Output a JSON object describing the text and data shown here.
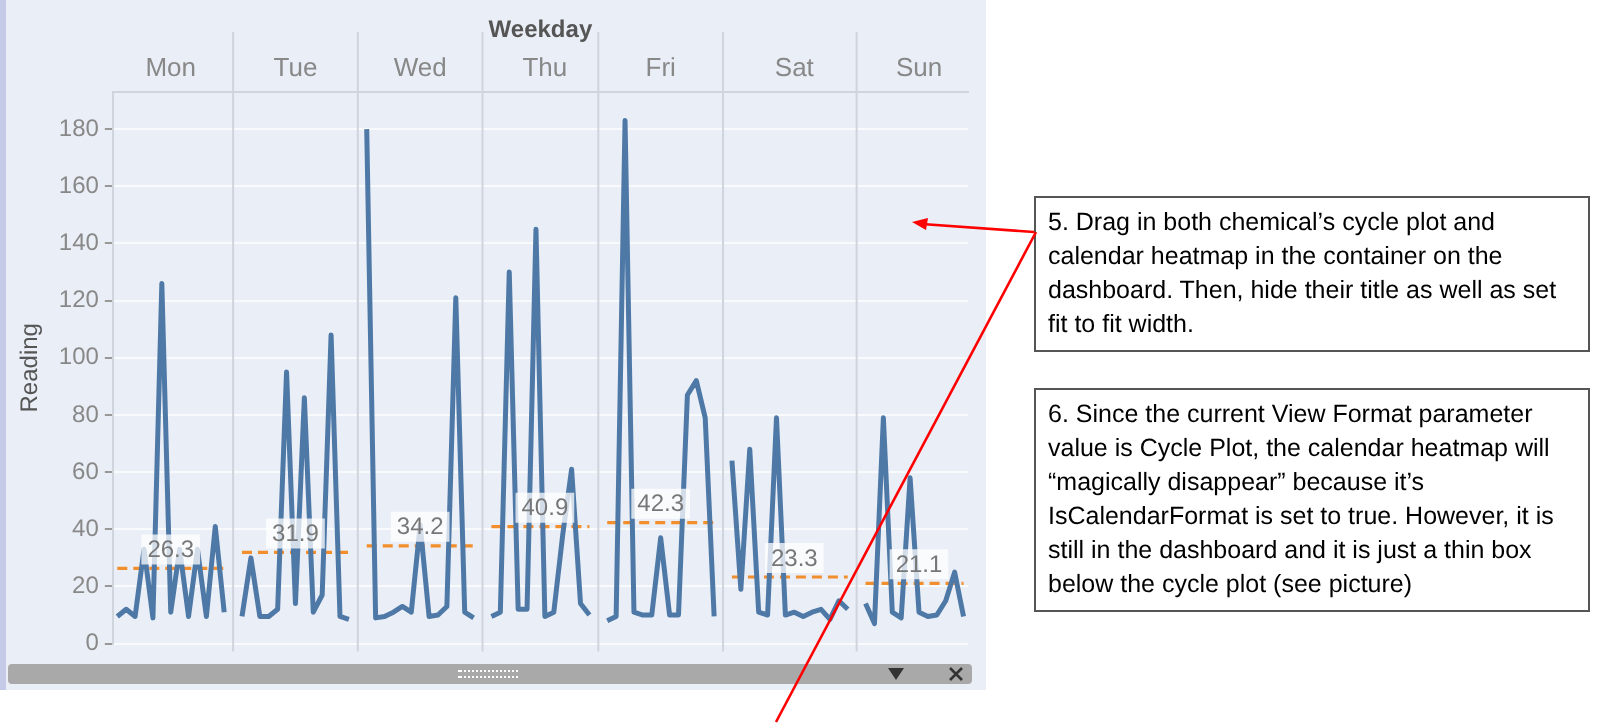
{
  "chart_data": [
    {
      "type": "line",
      "xlabel": "Weekday",
      "ylabel": "Reading",
      "categories": [
        null,
        null,
        null,
        null,
        null,
        null,
        "Mon",
        null,
        null,
        null,
        null,
        null,
        null,
        null,
        null,
        null,
        null,
        null,
        null,
        null,
        "Tue",
        null,
        null,
        null,
        null,
        null,
        null,
        null,
        null,
        null,
        null,
        null,
        null,
        null,
        "Wed",
        null,
        null,
        null,
        null,
        null,
        null,
        null,
        null,
        null,
        null,
        null,
        null,
        null,
        "Thu",
        null,
        null,
        null,
        null,
        null,
        null,
        null,
        null,
        null,
        null,
        null,
        null,
        "Fri",
        null,
        null,
        null,
        null,
        null,
        null,
        null,
        null,
        null,
        null,
        null,
        null,
        null,
        null,
        "Sat",
        null,
        null,
        null,
        null,
        null,
        null,
        null,
        null,
        null,
        null,
        null,
        null,
        null,
        "Sun",
        null,
        null,
        null,
        null,
        null
      ],
      "series": [
        {
          "color": "#4e79a7",
          "values": [
            9.5,
            12,
            9.5,
            33,
            9,
            126,
            11,
            33,
            9.5,
            33,
            9.5,
            41,
            11,
            null,
            9.5,
            30,
            9.5,
            9.5,
            12,
            95,
            14,
            86,
            11,
            17,
            108,
            9.5,
            8.5,
            null,
            180,
            9,
            9.5,
            11,
            13,
            11,
            41.5,
            9.5,
            10,
            13,
            121,
            11,
            9,
            null,
            9.5,
            11,
            130,
            12,
            12,
            145,
            9.5,
            11,
            38,
            61,
            14,
            10,
            null,
            8,
            9.5,
            183,
            11,
            10,
            10,
            37,
            10,
            10,
            87,
            92,
            79,
            9.5,
            null,
            64,
            19,
            68,
            11,
            10,
            79,
            10,
            11,
            9.5,
            11,
            12,
            8.5,
            15,
            12,
            null,
            14,
            7,
            79,
            11,
            9,
            58,
            11,
            9.5,
            10,
            15,
            25,
            9.5
          ]
        },
        {
          "color": "#f28e2b",
          "line_style": "dashed",
          "values": [
            26.3,
            26.3,
            26.3,
            26.3,
            26.3,
            26.3,
            26.3,
            26.3,
            26.3,
            26.3,
            26.3,
            26.3,
            26.3,
            null,
            31.9,
            31.9,
            31.9,
            31.9,
            31.9,
            31.9,
            31.9,
            31.9,
            31.9,
            31.9,
            31.9,
            31.9,
            31.9,
            null,
            34.2,
            34.2,
            34.2,
            34.2,
            34.2,
            34.2,
            34.2,
            34.2,
            34.2,
            34.2,
            34.2,
            34.2,
            34.2,
            null,
            40.9,
            40.9,
            40.9,
            40.9,
            40.9,
            40.9,
            40.9,
            40.9,
            40.9,
            40.9,
            40.9,
            40.9,
            null,
            42.3,
            42.3,
            42.3,
            42.3,
            42.3,
            42.3,
            42.3,
            42.3,
            42.3,
            42.3,
            42.3,
            42.3,
            42.3,
            null,
            23.3,
            23.3,
            23.3,
            23.3,
            23.3,
            23.3,
            23.3,
            23.3,
            23.3,
            23.3,
            23.3,
            23.3,
            23.3,
            23.3,
            null,
            21.1,
            21.1,
            21.1,
            21.1,
            21.1,
            21.1,
            21.1,
            21.1,
            21.1,
            21.1,
            21.1,
            21.1
          ]
        }
      ],
      "annotations": [
        {
          "text": "26.3",
          "x": "Mon",
          "y": 26.3
        },
        {
          "text": "31.9",
          "x": "Tue",
          "y": 31.9
        },
        {
          "text": "34.2",
          "x": "Wed",
          "y": 34.2
        },
        {
          "text": "40.9",
          "x": "Thu",
          "y": 40.9
        },
        {
          "text": "42.3",
          "x": "Fri",
          "y": 42.3
        },
        {
          "text": "23.3",
          "x": "Sat",
          "y": 23.3
        },
        {
          "text": "21.1",
          "x": "Sun",
          "y": 21.1
        }
      ],
      "ylim": [
        0,
        193
      ],
      "yticks": [
        0,
        20,
        40,
        60,
        80,
        100,
        120,
        140,
        160,
        180
      ],
      "grid": "y",
      "marker": "none",
      "legend": false
    },
    {
      "type": "other",
      "annotations": [
        "5. Drag in both chemical’s cycle plot and calendar heatmap in the container on the dashboard. Then, hide their title as well as set fit to fit width.",
        "6. Since the current View Format parameter value is Cycle Plot, the calendar heatmap will “magically disappear” because it’s IsCalendarFormat is set to true. However, it is still in the dashboard and it is just a thin box below the cycle plot (see picture)"
      ]
    }
  ]
}
